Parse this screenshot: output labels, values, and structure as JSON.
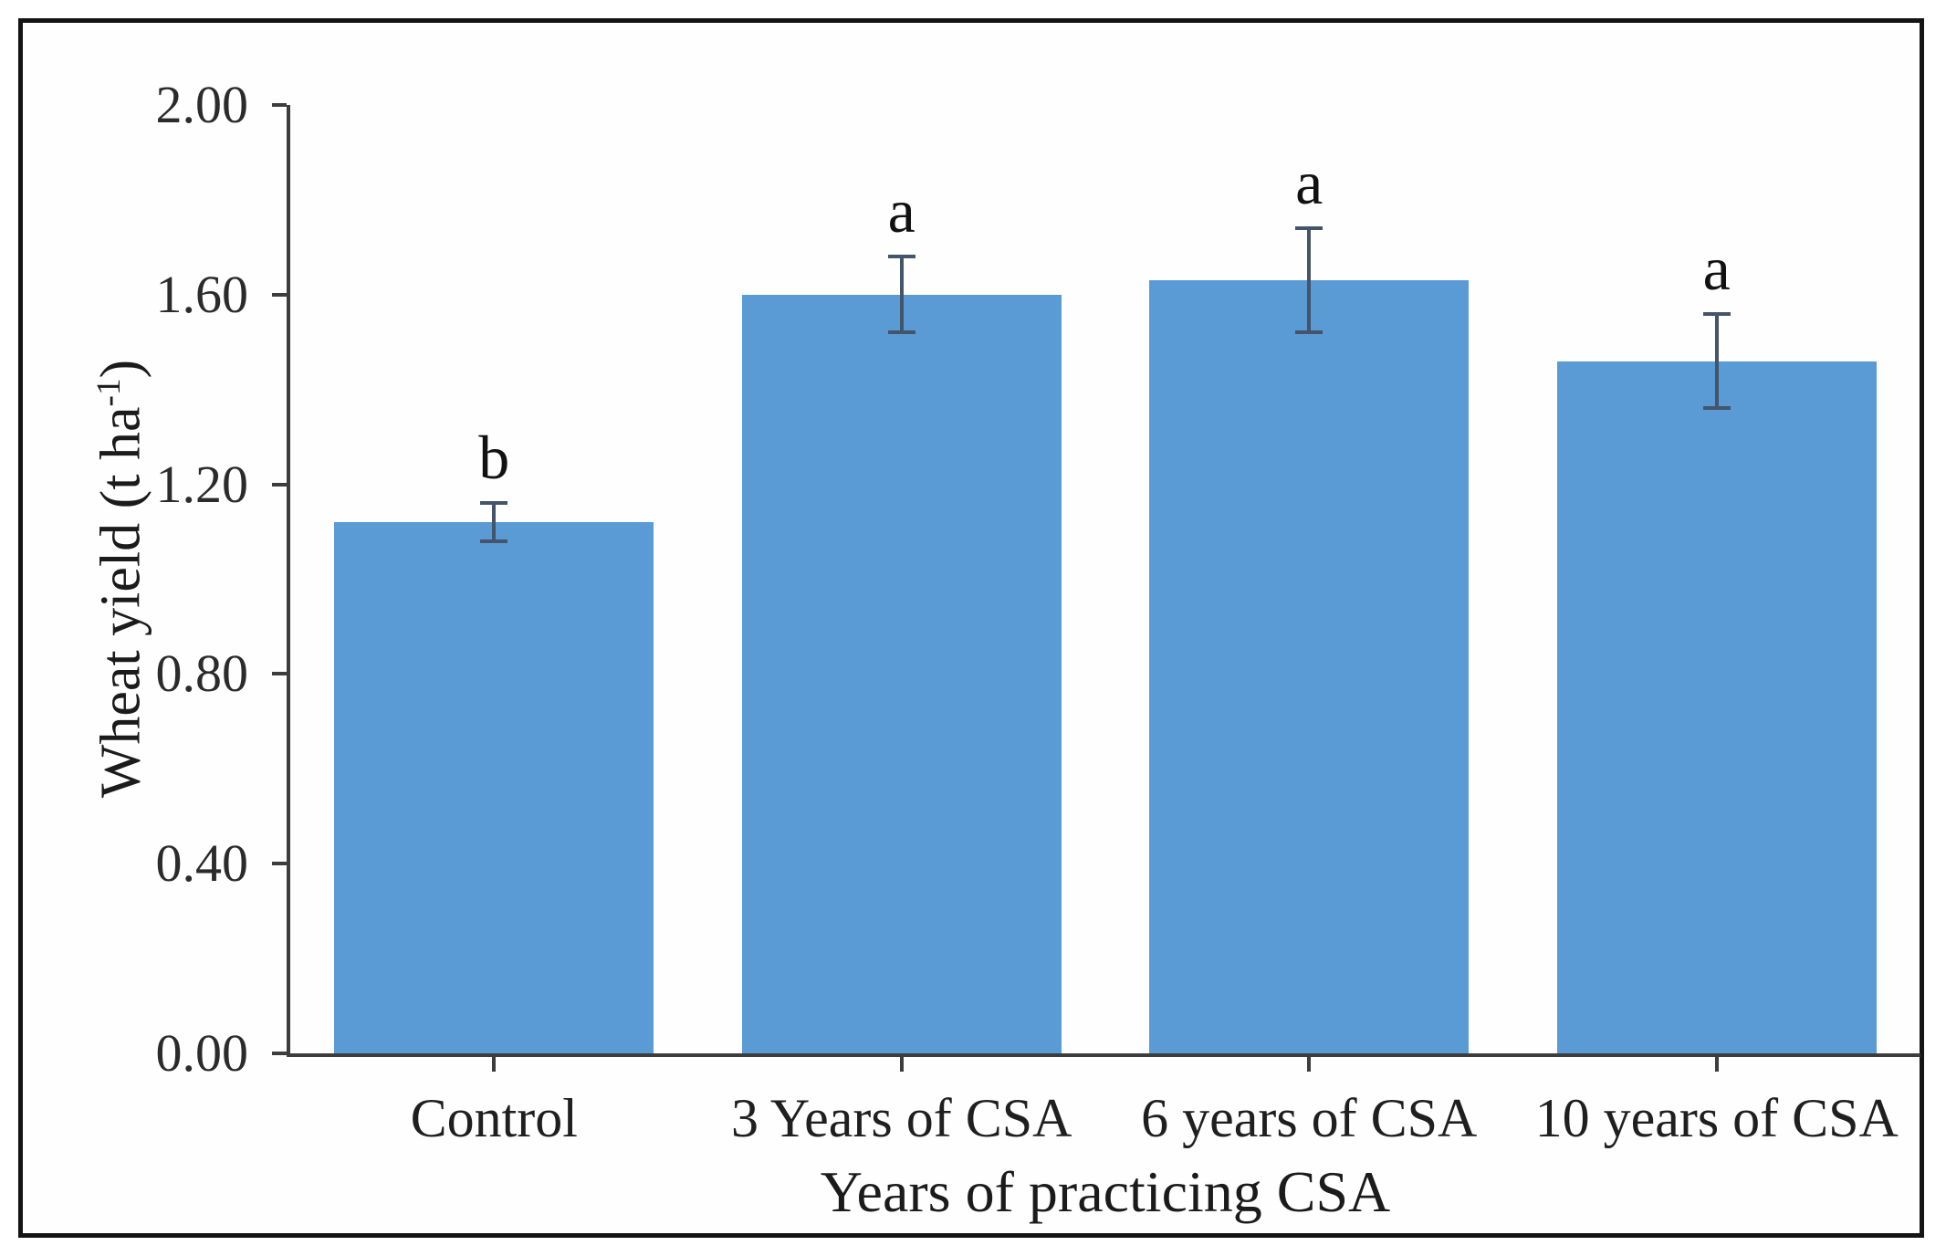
{
  "figure": {
    "background": "#ffffff",
    "border_color": "#141414"
  },
  "chart_data": {
    "type": "bar",
    "title": "",
    "categories": [
      "Control",
      "3 Years of CSA",
      "6 years of CSA",
      "10 years of CSA"
    ],
    "values": [
      1.12,
      1.6,
      1.63,
      1.46
    ],
    "errors": [
      0.04,
      0.08,
      0.11,
      0.1
    ],
    "sig_letters": [
      "b",
      "a",
      "a",
      "a"
    ],
    "xlabel": "Years of practicing CSA",
    "ylabel": "Wheat yield (t ha⁻¹)",
    "ylabel_prefix": "Wheat yield (t ha",
    "ylabel_sup": "-1",
    "ylabel_suffix": ")",
    "ylim": [
      0.0,
      2.0
    ],
    "ytick_step": 0.4,
    "ytick_labels": [
      "0.00",
      "0.40",
      "0.80",
      "1.20",
      "1.60",
      "2.00"
    ],
    "grid": false,
    "legend": "none",
    "bar_color": "#5B9BD5",
    "error_color": "#44546A",
    "axis_color": "#3d3d3d",
    "text_color": "#1f1f1f"
  }
}
